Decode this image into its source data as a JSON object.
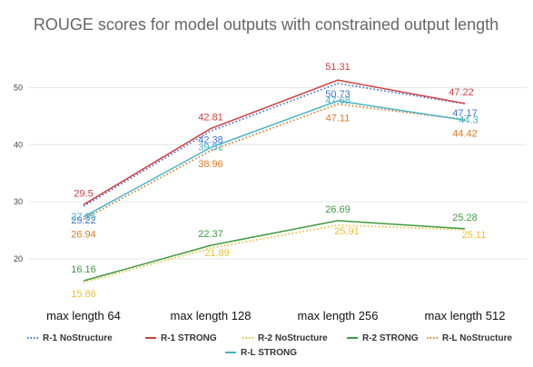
{
  "chart_data": {
    "type": "line",
    "title": "ROUGE scores for model outputs with constrained output length",
    "xlabel": "",
    "ylabel": "",
    "categories": [
      "max length 64",
      "max length 128",
      "max length 256",
      "max length 512"
    ],
    "y_ticks": [
      20,
      30,
      40,
      50
    ],
    "ylim": [
      13,
      55
    ],
    "grid": true,
    "legend_position": "bottom",
    "series": [
      {
        "name": "R-1 NoStructure",
        "values": [
          29.22,
          42.38,
          50.73,
          47.17
        ],
        "color": "#3f74d6",
        "dashed": true
      },
      {
        "name": "R-1 STRONG",
        "values": [
          29.5,
          42.81,
          51.31,
          47.22
        ],
        "color": "#d13f3f",
        "dashed": false
      },
      {
        "name": "R-2 NoStructure",
        "values": [
          15.86,
          21.89,
          25.91,
          25.11
        ],
        "color": "#f2be31",
        "dashed": true
      },
      {
        "name": "R-2 STRONG",
        "values": [
          16.16,
          22.37,
          26.69,
          25.28
        ],
        "color": "#3f9a3f",
        "dashed": false
      },
      {
        "name": "R-L NoStructure",
        "values": [
          26.94,
          38.96,
          47.11,
          44.42
        ],
        "color": "#e07b23",
        "dashed": true
      },
      {
        "name": "R-L STRONG",
        "values": [
          27.35,
          39.51,
          47.68,
          44.3
        ],
        "color": "#46b3c6",
        "dashed": false
      }
    ]
  }
}
